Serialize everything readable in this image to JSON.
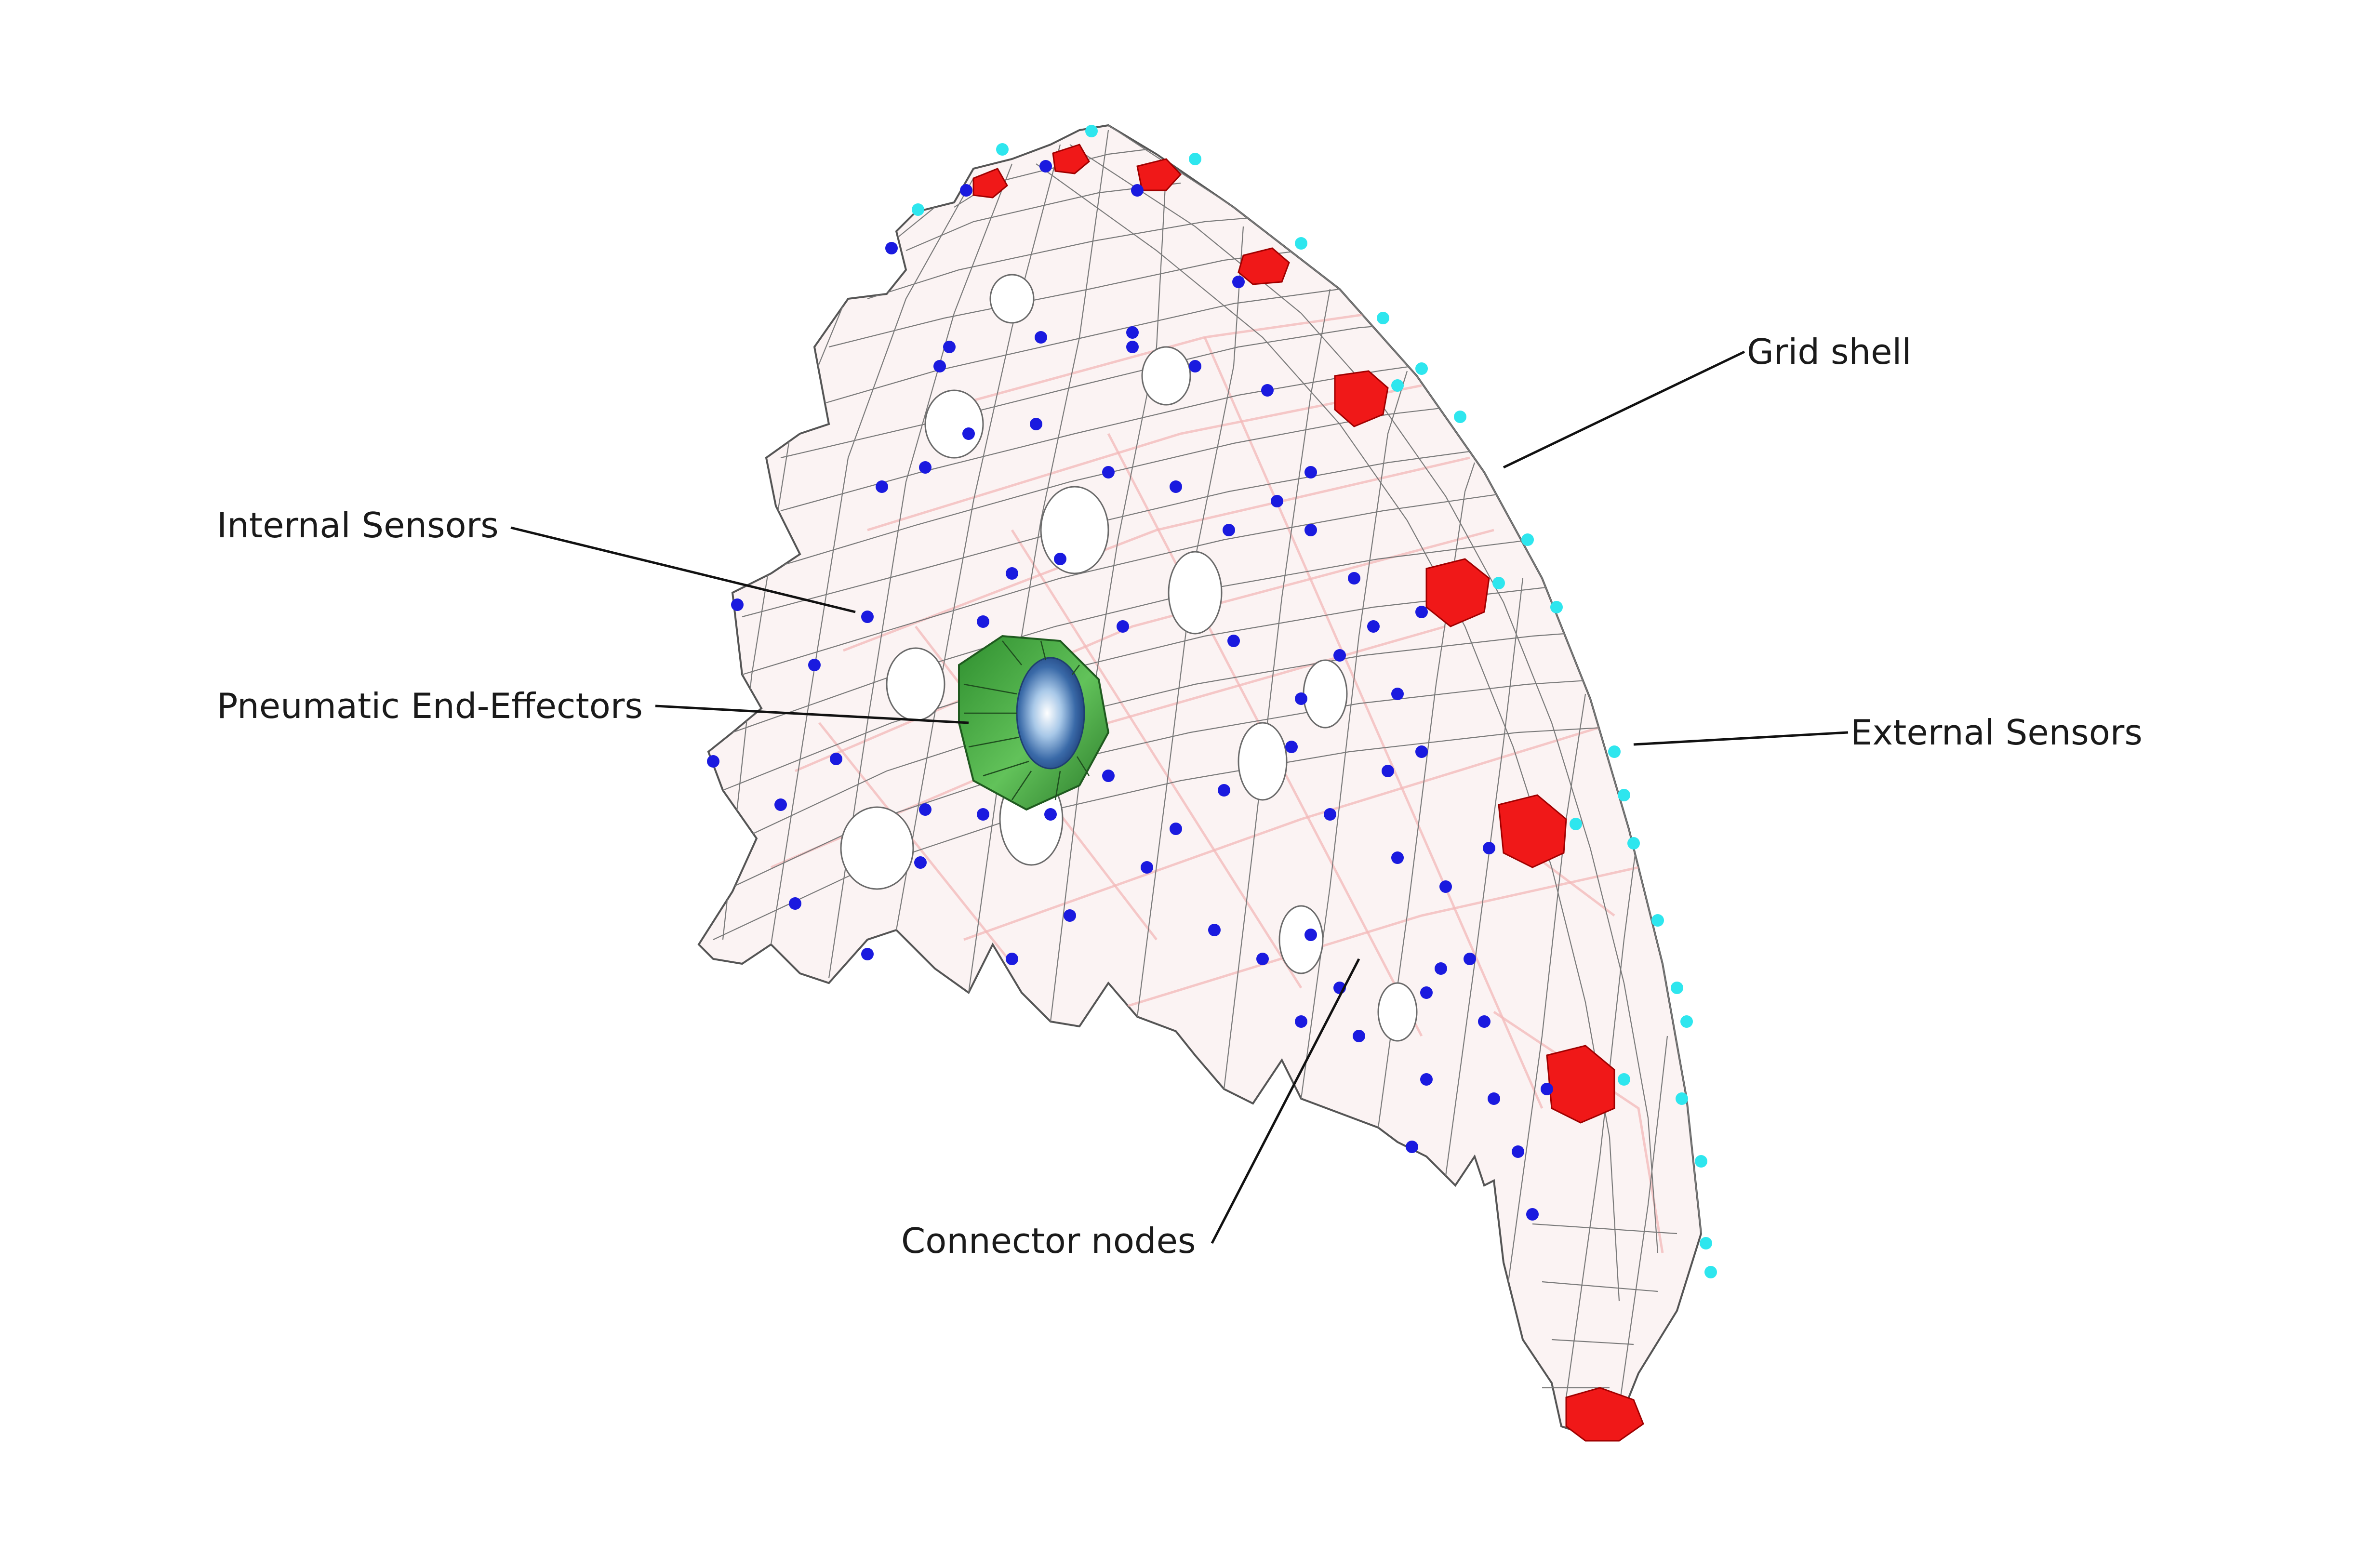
{
  "figure": {
    "labels": {
      "grid_shell": "Grid shell",
      "internal_sensors": "Internal Sensors",
      "pneumatic_end_effectors": "Pneumatic End-Effectors",
      "external_sensors": "External Sensors",
      "connector_nodes": "Connector nodes"
    },
    "colors": {
      "internal_sensor_nodes": "#1a1adf",
      "external_sensor_nodes": "#2ee6ee",
      "end_caps": "#f01818",
      "pneumatic_end_effector": "#3fae3f",
      "mesh_lines": "#7a7a7a",
      "shell_tint": "#f3b8b8"
    }
  }
}
